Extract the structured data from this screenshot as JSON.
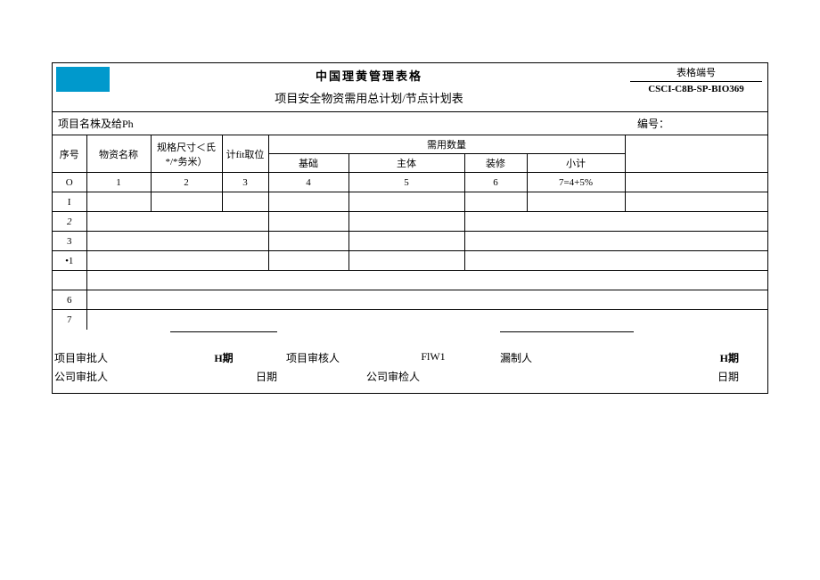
{
  "header": {
    "title1": "中国理黄管理表格",
    "title2": "项目安全物资需用总计划/节点计划表",
    "form_no_label": "表格端号",
    "form_no_value": "CSCI-C8B-SP-BIO369"
  },
  "meta_row": {
    "left": "项目名株及给Ph",
    "right": "编号："
  },
  "columns": {
    "seq": "序号",
    "material_name": "物资名称",
    "spec": "规格尺寸＜氏*/*务米）",
    "unit": "计fit取位",
    "qty_group": "需用数量",
    "qty_a": "基础",
    "qty_b": "主体",
    "qty_c": "装修",
    "qty_d": "小计"
  },
  "index_row": {
    "c0": "O",
    "c1": "1",
    "c2": "2",
    "c3": "3",
    "c4": "4",
    "c5": "5",
    "c6": "6",
    "c7": "7=4+5%"
  },
  "rows": [
    "I",
    "2",
    "3",
    "•1",
    "",
    "6",
    "7"
  ],
  "footer": {
    "proj_approver": "项目审批人",
    "h_period": "H期",
    "proj_reviewer": "项目审核人",
    "fiw": "FlW1",
    "compiler": "漏制人",
    "co_approver": "公司审批人",
    "date": "日期",
    "co_inspector": "公司审检人"
  },
  "style": {
    "logo_color": "#0099cc",
    "border_color": "#000000",
    "background": "#ffffff",
    "base_fontsize": 12
  }
}
